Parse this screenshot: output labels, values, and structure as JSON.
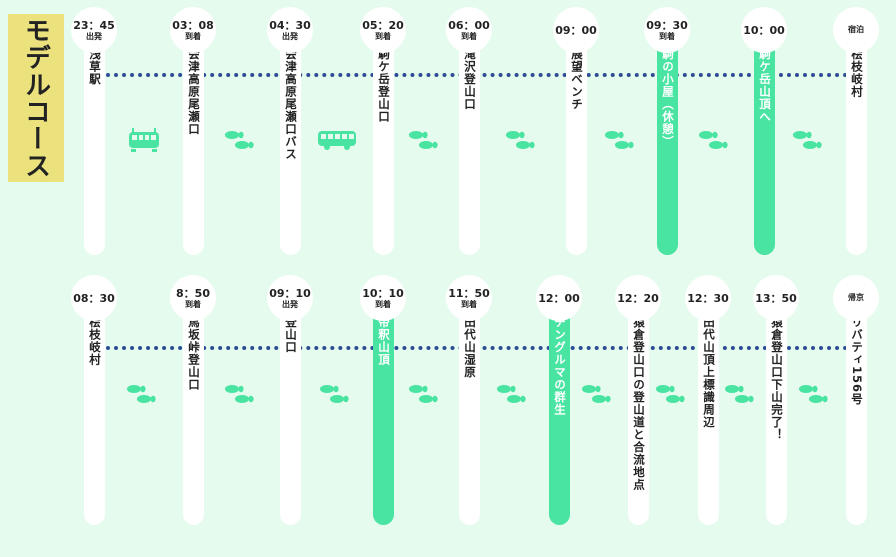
{
  "title": "モデルコース",
  "rows": [
    [
      {
        "time": "23：45",
        "status": "出発",
        "place": "浅草駅"
      },
      {
        "time": "03：08",
        "status": "到着",
        "place": "会津高原尾瀬口"
      },
      {
        "time": "04：30",
        "status": "出発",
        "place": "会津高原尾瀬口バス"
      },
      {
        "time": "05：20",
        "status": "到着",
        "place": "駒ケ岳登山口"
      },
      {
        "time": "06：00",
        "status": "到着",
        "place": "滝沢登山口"
      },
      {
        "time": "09：00",
        "status": "",
        "place": "展望ベンチ"
      },
      {
        "time": "09：30",
        "status": "到着",
        "place": "駒の小屋（休憩）",
        "highlight": true
      },
      {
        "time": "10：00",
        "status": "",
        "place": "駒ケ岳山頂へ",
        "highlight": true
      },
      {
        "time": "",
        "status": "宿泊",
        "place": "桧枝岐村"
      }
    ],
    [
      {
        "time": "08：30",
        "status": "",
        "place": "桧枝岐村"
      },
      {
        "time": "8：50",
        "status": "到着",
        "place": "馬坂峠登山口"
      },
      {
        "time": "09：10",
        "status": "出発",
        "place": "登山口"
      },
      {
        "time": "10：10",
        "status": "到着",
        "place": "帝釈山頂",
        "highlight": true
      },
      {
        "time": "11：50",
        "status": "到着",
        "place": "田代山湿原"
      },
      {
        "time": "12：00",
        "status": "",
        "place": "チングルマの群生",
        "highlight": true
      },
      {
        "time": "12：20",
        "status": "",
        "place": "猿倉登山口の登山道と合流地点"
      },
      {
        "time": "12：30",
        "status": "",
        "place": "田代山頂上標識周辺"
      },
      {
        "time": "13：50",
        "status": "",
        "place": "猿倉登山口下山完了！"
      },
      {
        "time": "",
        "status": "帰京",
        "place": "リバティ156号"
      }
    ]
  ],
  "transports": [
    [
      "train-icon",
      "footsteps-icon",
      "bus-icon",
      "footsteps-icon",
      "footsteps-icon",
      "footsteps-icon",
      "footsteps-icon",
      "footsteps-icon"
    ],
    [
      "footsteps-icon",
      "footsteps-icon",
      "footsteps-icon",
      "footsteps-icon",
      "footsteps-icon",
      "footsteps-icon",
      "footsteps-icon",
      "footsteps-icon",
      "footsteps-icon"
    ]
  ],
  "colors": {
    "background": "#e4fbed",
    "highlight": "#49e3a2",
    "dots": "#2f4d96",
    "icon": "#49e3a2",
    "label_bg": "#ebe27e"
  }
}
